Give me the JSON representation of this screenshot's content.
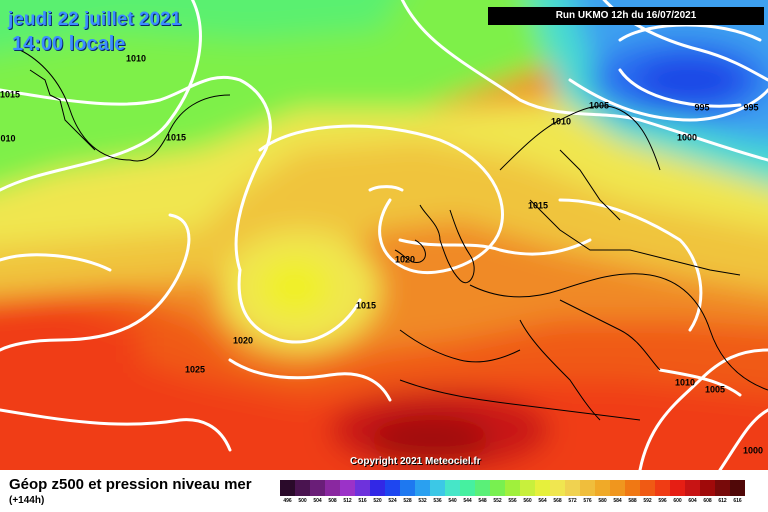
{
  "header": {
    "date": "jeudi 22 juillet 2021",
    "time": "14:00 locale",
    "run": "Run UKMO 12h du 16/07/2021"
  },
  "copyright": "Copyright 2021 Meteociel.fr",
  "footer": {
    "title": "Géop z500 et pression niveau mer",
    "subtitle": "(+144h)"
  },
  "isobar_labels": [
    {
      "text": "1010"
    },
    {
      "text": "1015"
    },
    {
      "text": "010"
    },
    {
      "text": "1015"
    },
    {
      "text": "1010"
    },
    {
      "text": "1005"
    },
    {
      "text": "995"
    },
    {
      "text": "995"
    },
    {
      "text": "1000"
    },
    {
      "text": "1015"
    },
    {
      "text": "1020"
    },
    {
      "text": "1015"
    },
    {
      "text": "1020"
    },
    {
      "text": "1025"
    },
    {
      "text": "1010"
    },
    {
      "text": "1005"
    },
    {
      "text": "1000"
    }
  ],
  "legend": {
    "colors": [
      "#2a0a2a",
      "#4a1450",
      "#6a1e78",
      "#8a28a0",
      "#9b32c8",
      "#6e32dc",
      "#3228e6",
      "#1e46f0",
      "#1e78f0",
      "#2aa0f0",
      "#3cc8e6",
      "#46e6c8",
      "#46f0a0",
      "#5af078",
      "#78f050",
      "#a0f03c",
      "#c8f03c",
      "#e6f03c",
      "#f0e650",
      "#f0d250",
      "#f0be3c",
      "#f0aa28",
      "#f0961e",
      "#f07814",
      "#f05a14",
      "#f03c14",
      "#e61e14",
      "#c81414",
      "#a00a0a",
      "#780a0a",
      "#500808",
      "#280404",
      "#000000"
    ],
    "ticks": [
      "496",
      "500",
      "504",
      "508",
      "512",
      "516",
      "520",
      "524",
      "528",
      "532",
      "536",
      "540",
      "544",
      "548",
      "552",
      "556",
      "560",
      "564",
      "568",
      "572",
      "576",
      "580",
      "584",
      "588",
      "592",
      "596",
      "600",
      "604",
      "608",
      "612",
      "616"
    ]
  }
}
